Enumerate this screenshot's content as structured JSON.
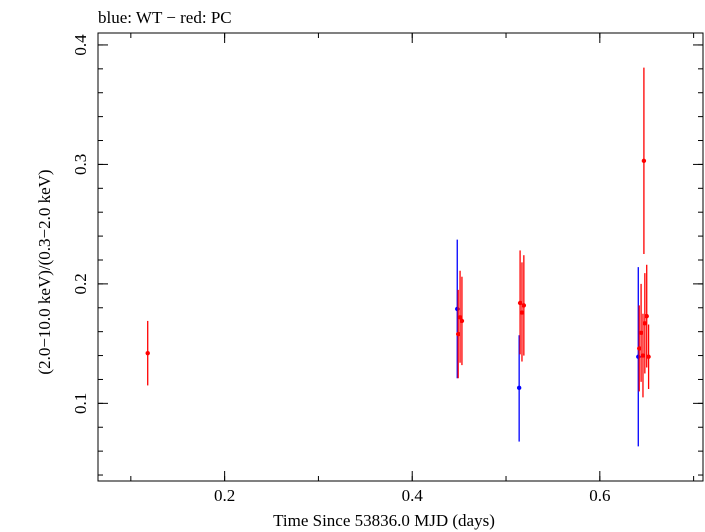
{
  "chart_data": {
    "type": "scatter",
    "title": "blue: WT − red: PC",
    "xlabel": "Time Since 53836.0 MJD (days)",
    "ylabel": "(2.0−10.0 keV)/(0.3−2.0 keV)",
    "xlim": [
      0.065,
      0.71
    ],
    "ylim": [
      0.035,
      0.41
    ],
    "x_ticks": [
      {
        "value": 0.2,
        "label": "0.2"
      },
      {
        "value": 0.4,
        "label": "0.4"
      },
      {
        "value": 0.6,
        "label": "0.6"
      }
    ],
    "y_ticks": [
      {
        "value": 0.1,
        "label": "0.1"
      },
      {
        "value": 0.2,
        "label": "0.2"
      },
      {
        "value": 0.3,
        "label": "0.3"
      },
      {
        "value": 0.4,
        "label": "0.4"
      }
    ],
    "x_minor_step": 0.1,
    "y_minor_step": 0.02,
    "error_bars": true,
    "grid": false,
    "series": [
      {
        "name": "WT",
        "color": "#0000ff",
        "points": [
          {
            "x": 0.448,
            "y": 0.179,
            "lo": 0.121,
            "hi": 0.237
          },
          {
            "x": 0.514,
            "y": 0.113,
            "lo": 0.068,
            "hi": 0.157
          },
          {
            "x": 0.641,
            "y": 0.139,
            "lo": 0.064,
            "hi": 0.214
          }
        ]
      },
      {
        "name": "PC",
        "color": "#ff0000",
        "points": [
          {
            "x": 0.118,
            "y": 0.142,
            "lo": 0.115,
            "hi": 0.169
          },
          {
            "x": 0.449,
            "y": 0.158,
            "lo": 0.121,
            "hi": 0.195
          },
          {
            "x": 0.451,
            "y": 0.172,
            "lo": 0.134,
            "hi": 0.211
          },
          {
            "x": 0.453,
            "y": 0.169,
            "lo": 0.132,
            "hi": 0.206
          },
          {
            "x": 0.515,
            "y": 0.184,
            "lo": 0.141,
            "hi": 0.228
          },
          {
            "x": 0.517,
            "y": 0.176,
            "lo": 0.135,
            "hi": 0.218
          },
          {
            "x": 0.519,
            "y": 0.182,
            "lo": 0.14,
            "hi": 0.224
          },
          {
            "x": 0.642,
            "y": 0.146,
            "lo": 0.11,
            "hi": 0.182
          },
          {
            "x": 0.644,
            "y": 0.159,
            "lo": 0.118,
            "hi": 0.2
          },
          {
            "x": 0.646,
            "y": 0.14,
            "lo": 0.105,
            "hi": 0.175
          },
          {
            "x": 0.647,
            "y": 0.303,
            "lo": 0.225,
            "hi": 0.381
          },
          {
            "x": 0.648,
            "y": 0.167,
            "lo": 0.125,
            "hi": 0.209
          },
          {
            "x": 0.65,
            "y": 0.173,
            "lo": 0.13,
            "hi": 0.216
          },
          {
            "x": 0.652,
            "y": 0.139,
            "lo": 0.112,
            "hi": 0.166
          }
        ]
      }
    ]
  }
}
